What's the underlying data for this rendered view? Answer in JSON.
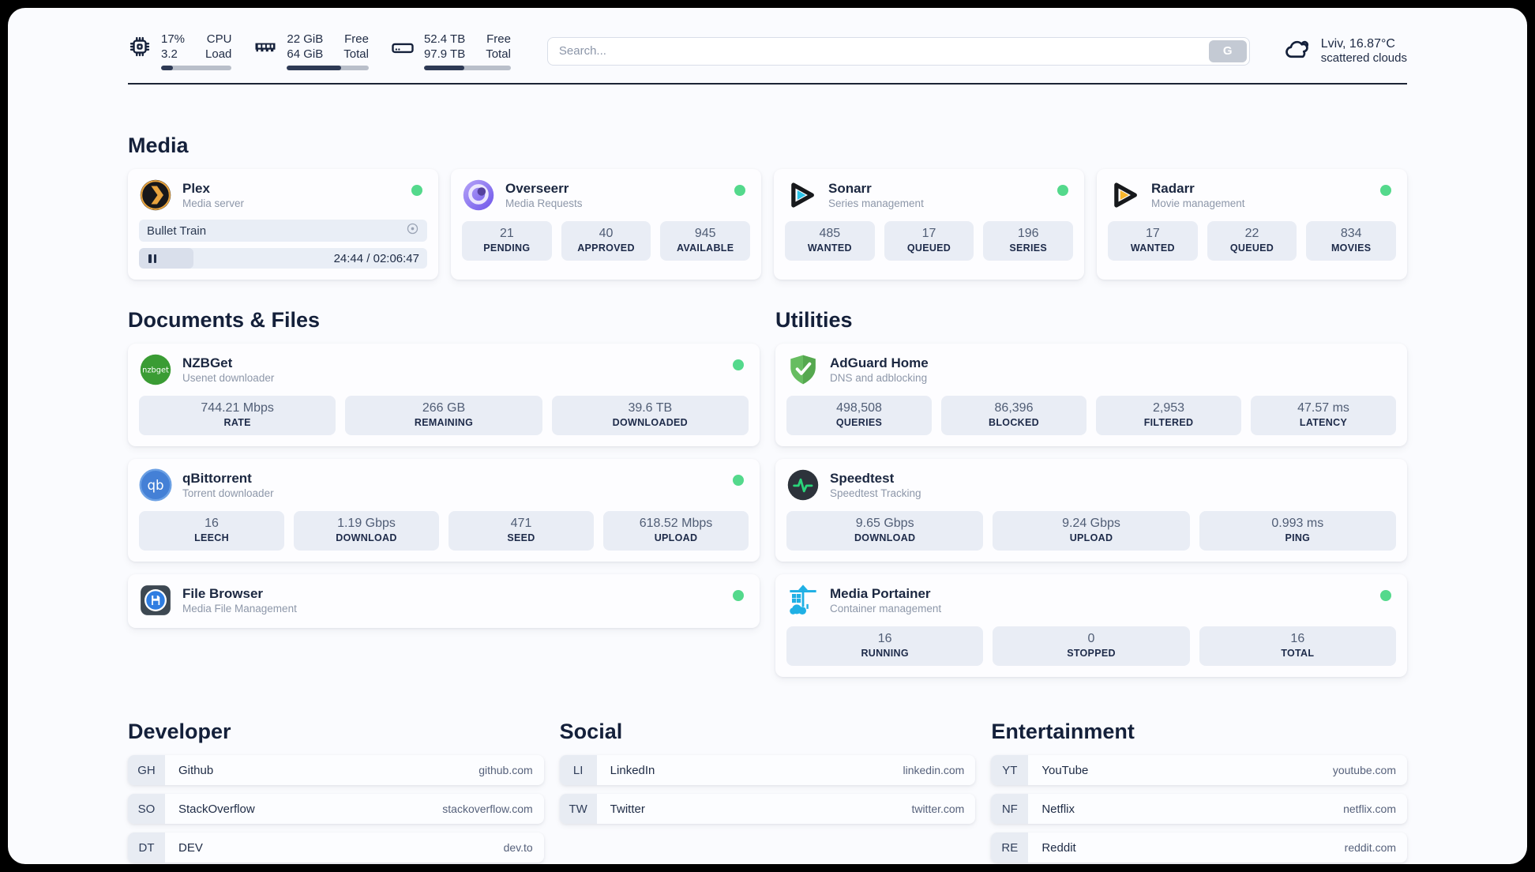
{
  "header": {
    "cpu_widget": {
      "col1_top": "17%",
      "col1_bottom": "3.2",
      "col2_top": "CPU",
      "col2_bottom": "Load",
      "progress_pct": 17
    },
    "memory_widget": {
      "col1_top": "22 GiB",
      "col1_bottom": "64 GiB",
      "col2_top": "Free",
      "col2_bottom": "Total",
      "progress_pct": 66
    },
    "disk_widget": {
      "col1_top": "52.4 TB",
      "col1_bottom": "97.9 TB",
      "col2_top": "Free",
      "col2_bottom": "Total",
      "progress_pct": 46
    },
    "search": {
      "placeholder": "Search...",
      "button_label": "G"
    },
    "weather": {
      "location_temp": "Lviv, 16.87°C",
      "condition": "scattered clouds"
    }
  },
  "media_section": {
    "title": "Media",
    "plex": {
      "name": "Plex",
      "description": "Media server",
      "online": true,
      "now_playing": {
        "title": "Bullet Train",
        "time_display": "24:44 / 02:06:47",
        "progress_pct": 19
      }
    },
    "overseerr": {
      "name": "Overseerr",
      "description": "Media Requests",
      "online": true,
      "stats": [
        {
          "value": "21",
          "label": "PENDING"
        },
        {
          "value": "40",
          "label": "APPROVED"
        },
        {
          "value": "945",
          "label": "AVAILABLE"
        }
      ]
    },
    "sonarr": {
      "name": "Sonarr",
      "description": "Series management",
      "online": true,
      "stats": [
        {
          "value": "485",
          "label": "WANTED"
        },
        {
          "value": "17",
          "label": "QUEUED"
        },
        {
          "value": "196",
          "label": "SERIES"
        }
      ]
    },
    "radarr": {
      "name": "Radarr",
      "description": "Movie management",
      "online": true,
      "stats": [
        {
          "value": "17",
          "label": "WANTED"
        },
        {
          "value": "22",
          "label": "QUEUED"
        },
        {
          "value": "834",
          "label": "MOVIES"
        }
      ]
    }
  },
  "documents_section": {
    "title": "Documents & Files",
    "nzbget": {
      "name": "NZBGet",
      "description": "Usenet downloader",
      "online": true,
      "stats": [
        {
          "value": "744.21 Mbps",
          "label": "RATE"
        },
        {
          "value": "266 GB",
          "label": "REMAINING"
        },
        {
          "value": "39.6 TB",
          "label": "DOWNLOADED"
        }
      ]
    },
    "qbittorrent": {
      "name": "qBittorrent",
      "description": "Torrent downloader",
      "online": true,
      "stats": [
        {
          "value": "16",
          "label": "LEECH"
        },
        {
          "value": "1.19 Gbps",
          "label": "DOWNLOAD"
        },
        {
          "value": "471",
          "label": "SEED"
        },
        {
          "value": "618.52 Mbps",
          "label": "UPLOAD"
        }
      ]
    },
    "filebrowser": {
      "name": "File Browser",
      "description": "Media File Management",
      "online": true
    }
  },
  "utilities_section": {
    "title": "Utilities",
    "adguard": {
      "name": "AdGuard Home",
      "description": "DNS and adblocking",
      "online": false,
      "stats": [
        {
          "value": "498,508",
          "label": "QUERIES"
        },
        {
          "value": "86,396",
          "label": "BLOCKED"
        },
        {
          "value": "2,953",
          "label": "FILTERED"
        },
        {
          "value": "47.57 ms",
          "label": "LATENCY"
        }
      ]
    },
    "speedtest": {
      "name": "Speedtest",
      "description": "Speedtest Tracking",
      "online": false,
      "stats": [
        {
          "value": "9.65 Gbps",
          "label": "DOWNLOAD"
        },
        {
          "value": "9.24 Gbps",
          "label": "UPLOAD"
        },
        {
          "value": "0.993 ms",
          "label": "PING"
        }
      ]
    },
    "portainer": {
      "name": "Media Portainer",
      "description": "Container management",
      "online": true,
      "stats": [
        {
          "value": "16",
          "label": "RUNNING"
        },
        {
          "value": "0",
          "label": "STOPPED"
        },
        {
          "value": "16",
          "label": "TOTAL"
        }
      ]
    }
  },
  "bookmarks": {
    "developer": {
      "title": "Developer",
      "items": [
        {
          "abbr": "GH",
          "name": "Github",
          "url": "github.com"
        },
        {
          "abbr": "SO",
          "name": "StackOverflow",
          "url": "stackoverflow.com"
        },
        {
          "abbr": "DT",
          "name": "DEV",
          "url": "dev.to"
        }
      ]
    },
    "social": {
      "title": "Social",
      "items": [
        {
          "abbr": "LI",
          "name": "LinkedIn",
          "url": "linkedin.com"
        },
        {
          "abbr": "TW",
          "name": "Twitter",
          "url": "twitter.com"
        }
      ]
    },
    "entertainment": {
      "title": "Entertainment",
      "items": [
        {
          "abbr": "YT",
          "name": "YouTube",
          "url": "youtube.com"
        },
        {
          "abbr": "NF",
          "name": "Netflix",
          "url": "netflix.com"
        },
        {
          "abbr": "RE",
          "name": "Reddit",
          "url": "reddit.com"
        }
      ]
    }
  },
  "colors": {
    "status_online": "#54d98c",
    "accent_dark": "#1c2435"
  }
}
